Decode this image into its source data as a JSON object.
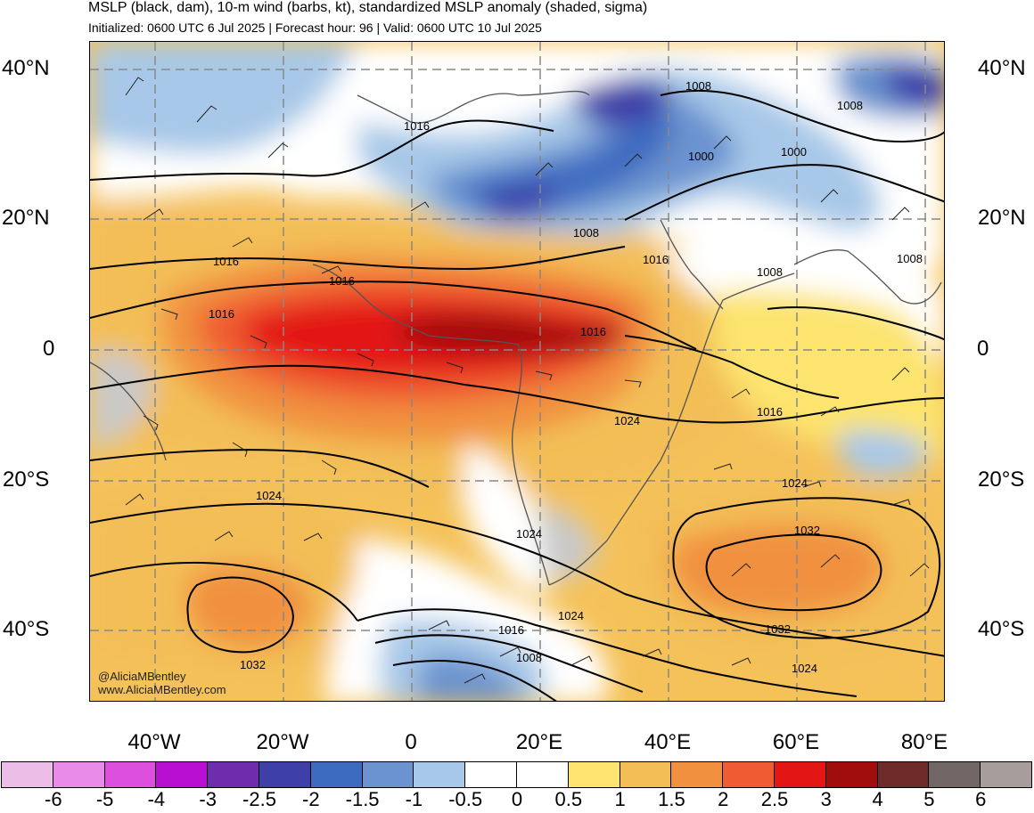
{
  "header": {
    "title": "MSLP (black, dam), 10-m wind (barbs, kt), standardized MSLP anomaly (shaded, sigma)",
    "subtitle": "Initialized: 0600 UTC 6 Jul 2025 | Forecast hour: 96 | Valid: 0600 UTC 10 Jul 2025"
  },
  "map": {
    "lat_labels": [
      "40°N",
      "20°N",
      "0",
      "20°S",
      "40°S"
    ],
    "lon_labels": [
      "40°W",
      "20°W",
      "0",
      "20°E",
      "40°E",
      "60°E",
      "80°E"
    ],
    "isobar_labels": [
      "1016",
      "1008",
      "1000",
      "1000",
      "1008",
      "1008",
      "1016",
      "1016",
      "1016",
      "1008",
      "1008",
      "1016",
      "1016",
      "1024",
      "1016",
      "1024",
      "1024",
      "1024",
      "1032",
      "1024",
      "1016",
      "1008",
      "1032",
      "1024",
      "1032"
    ],
    "credit_line1": "@AliciaMBentley",
    "credit_line2": "www.AliciaMBentley.com"
  },
  "colorbar": {
    "colors": [
      "#ecbde6",
      "#e98ce9",
      "#dd50dd",
      "#b80fd3",
      "#6c2cac",
      "#3f3fa8",
      "#3c6bc0",
      "#6b93cf",
      "#a7c8e8",
      "#ffffff",
      "#ffffff",
      "#fce46e",
      "#f3be56",
      "#f1913f",
      "#ef5b33",
      "#e31515",
      "#a10c0c",
      "#6f2a2a",
      "#726565",
      "#a89d9d"
    ],
    "labels": [
      "-6",
      "-5",
      "-4",
      "-3",
      "-2.5",
      "-2",
      "-1.5",
      "-1",
      "-0.5",
      "0",
      "0.5",
      "1",
      "1.5",
      "2",
      "2.5",
      "3",
      "4",
      "5",
      "6"
    ]
  }
}
